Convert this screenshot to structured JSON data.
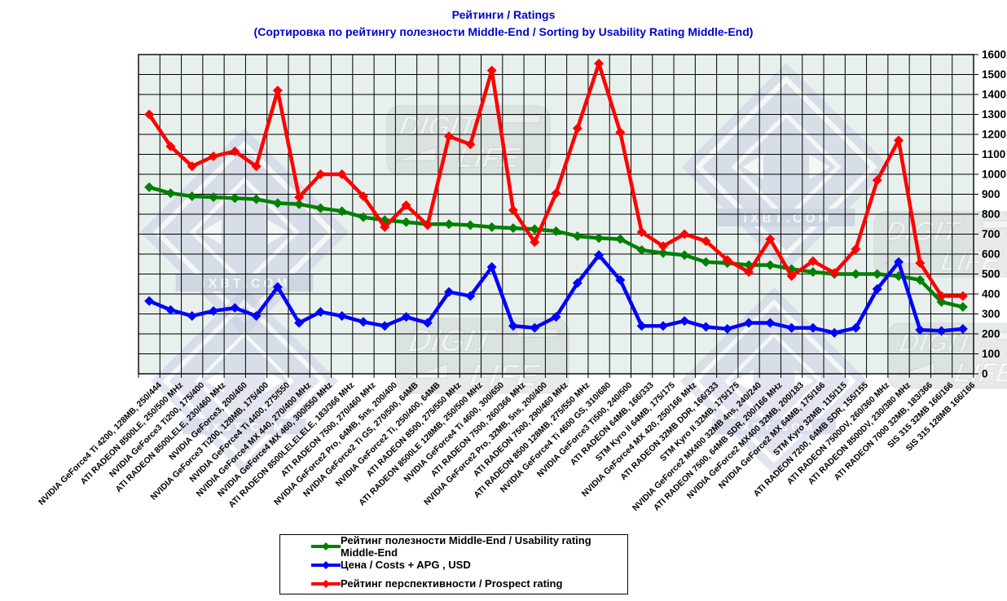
{
  "title": {
    "line1": "Рейтинги / Ratings",
    "line2": "(Сортировка по рейтингу полезности Middle-End / Sorting by Usability Rating Middle-End)",
    "color": "#0000cc"
  },
  "colors": {
    "plot_background": "#e8f0ed",
    "grid": "#000000",
    "watermark_diamond": "#c7cde2",
    "watermark_banner": "#d2dad7"
  },
  "watermarks": {
    "ixbt_text": "i X B T . C O M",
    "digit_top": "DIGIT",
    "digit_bottom": "LIFE"
  },
  "chart_data": {
    "type": "line",
    "title": "Рейтинги / Ratings",
    "subtitle": "(Сортировка по рейтингу полезности Middle-End / Sorting by Usability Rating Middle-End)",
    "ylim": [
      0,
      1600
    ],
    "ytick_step": 100,
    "grid": true,
    "legend_position": "bottom",
    "categories": [
      "NVIDIA GeForce4 Ti 4200, 128MB, 250/444",
      "ATI RADEON 8500LE, 250/500 MHz",
      "NVIDIA GeForce3 Ti200, 175/400",
      "ATI RADEON 8500LELE, 230/460 MHz",
      "NVIDIA GeForce3, 200/460",
      "NVIDIA GeForce3 Ti200, 128MB, 175/400",
      "NVIDIA GeForce4 Ti 4400, 275/550",
      "NVIDIA GeForce4 MX 440, 270/400 MHz",
      "NVIDIA GeForce4 MX 460, 300/550 MHz",
      "ATI RADEON 8500LELELELE, 183/366 MHz",
      "ATI RADEON 7500, 270/460 MHz",
      "NVIDIA GeForce2 Pro, 64MB, 5ns, 200/400",
      "NVIDIA GeForce2 Ti GS, 270/500, 64MB",
      "NVIDIA GeForce2 Ti, 250/400, 64MB",
      "ATI RADEON 8500, 275/550 MHz",
      "ATI RADEON 8500LE 128MB, 250/500 MHz",
      "NVIDIA GeForce4 Ti 4600, 300/650",
      "ATI RADEON 7500, 260/366 MHz",
      "NVIDIA GeForce2 Pro, 32MB, 5ns, 200/400",
      "ATI RADEON 7500, 290/460 MHz",
      "ATI RADEON 8500 128MB, 275/550 MHz",
      "NVIDIA GeForce4 Ti 4600 GS, 310/680",
      "NVIDIA GeForce3 Ti500, 240/500",
      "ATI RADEON 64MB, 166/333",
      "STM Kyro II 64MB, 175/175",
      "NVIDIA GeForce4 MX 420, 250/166 MHz",
      "ATI RADEON 32MB DDR, 166/333",
      "STM Kyro II 32MB, 175/175",
      "NVIDIA GeForce2 MX400 32MB 4ns, 240/240",
      "ATI RADEON 7500, 64MB SDR, 200/166 MHz",
      "NVIDIA GeForce2 MX400 32MB, 200/183",
      "NVIDIA GeForce2 MX 64MB, 175/166",
      "STM Kyro 32MB, 115/115",
      "ATI RADEON 7200, 64MB SDR, 155/155",
      "ATI RADEON 7500DV, 260/360 MHz",
      "ATI RADEON 8500DV, 230/380 MHz",
      "ATI RADEON 7000 32MB, 183/366",
      "SIS 315 32MB 166/166",
      "SIS 315 128MB 166/166"
    ],
    "series": [
      {
        "name": "Рейтинг полезности Middle-End / Usability rating Middle-End",
        "color": "#008000",
        "values": [
          935,
          905,
          890,
          885,
          880,
          875,
          855,
          850,
          830,
          815,
          785,
          770,
          760,
          750,
          750,
          745,
          735,
          730,
          725,
          715,
          690,
          680,
          675,
          620,
          605,
          595,
          560,
          555,
          545,
          545,
          525,
          510,
          500,
          500,
          500,
          490,
          470,
          360,
          335
        ]
      },
      {
        "name": "Цена / Costs + APG , USD",
        "color": "#0000ff",
        "values": [
          365,
          320,
          290,
          315,
          330,
          290,
          435,
          255,
          310,
          290,
          260,
          240,
          285,
          255,
          410,
          390,
          535,
          240,
          230,
          285,
          455,
          595,
          470,
          240,
          240,
          265,
          235,
          225,
          255,
          255,
          230,
          230,
          205,
          230,
          425,
          560,
          220,
          215,
          225
        ]
      },
      {
        "name": "Рейтинг перспективности / Prospect rating",
        "color": "#ff0000",
        "values": [
          1300,
          1140,
          1040,
          1090,
          1115,
          1040,
          1420,
          885,
          1000,
          1000,
          890,
          735,
          845,
          745,
          1190,
          1150,
          1520,
          820,
          660,
          905,
          1230,
          1555,
          1210,
          710,
          640,
          700,
          665,
          570,
          510,
          675,
          490,
          565,
          505,
          625,
          970,
          1170,
          555,
          390,
          390
        ]
      }
    ]
  }
}
